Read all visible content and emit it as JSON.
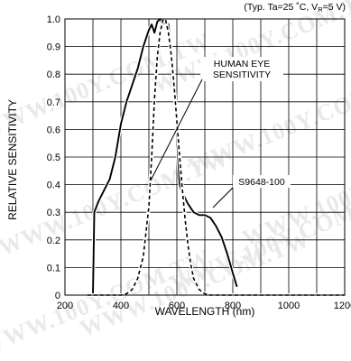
{
  "chart_data": {
    "type": "line",
    "title": "(Typ. Ta=25 ˚C, VR=5 V)",
    "title_main": "(Typ. Ta=25 ˚C, V",
    "title_sub": "R",
    "title_tail": "=5 V)",
    "xlabel": "WAVELENGTH (nm)",
    "ylabel": "RELATIVE SENSITIVITY",
    "xlim": [
      200,
      1200
    ],
    "ylim": [
      0,
      1.0
    ],
    "x_ticks": [
      200,
      400,
      600,
      800,
      1000,
      1200
    ],
    "y_ticks": [
      0,
      0.1,
      0.2,
      0.3,
      0.4,
      0.5,
      0.6,
      0.7,
      0.8,
      0.9,
      1.0
    ],
    "x_tick_labels": [
      "200",
      "400",
      "600",
      "800",
      "1000",
      "1200"
    ],
    "y_tick_labels": [
      "0",
      "0.1",
      "0.2",
      "0.3",
      "0.4",
      "0.5",
      "0.6",
      "0.7",
      "0.8",
      "0.9",
      "1.0"
    ],
    "grid": true,
    "series": [
      {
        "name": "S9648-100",
        "style": "solid",
        "color": "#000000",
        "x": [
          300,
          305,
          320,
          340,
          360,
          380,
          400,
          420,
          440,
          460,
          480,
          500,
          510,
          520,
          530,
          540,
          550,
          560,
          570,
          580,
          590,
          600,
          610,
          620,
          640,
          660,
          680,
          700,
          720,
          740,
          760,
          780,
          800,
          815
        ],
        "y": [
          0.0,
          0.3,
          0.34,
          0.38,
          0.42,
          0.5,
          0.62,
          0.7,
          0.76,
          0.82,
          0.9,
          0.96,
          0.98,
          0.95,
          0.99,
          1.0,
          0.98,
          0.99,
          0.98,
          0.88,
          0.78,
          0.58,
          0.4,
          0.37,
          0.33,
          0.3,
          0.29,
          0.29,
          0.28,
          0.25,
          0.21,
          0.15,
          0.08,
          0.03
        ]
      },
      {
        "name": "HUMAN EYE SENSITIVITY",
        "style": "dashed",
        "color": "#000000",
        "x": [
          280,
          400,
          420,
          440,
          460,
          480,
          500,
          510,
          520,
          530,
          540,
          550,
          555,
          560,
          570,
          580,
          590,
          600,
          610,
          620,
          630,
          640,
          650,
          660,
          680,
          700,
          720,
          760,
          800,
          1200
        ],
        "y": [
          0.0,
          0.0,
          0.005,
          0.02,
          0.06,
          0.14,
          0.32,
          0.5,
          0.71,
          0.86,
          0.95,
          0.995,
          1.0,
          0.995,
          0.95,
          0.87,
          0.76,
          0.63,
          0.5,
          0.38,
          0.27,
          0.18,
          0.11,
          0.06,
          0.02,
          0.005,
          0.0,
          0.0,
          0.0,
          0.0
        ]
      }
    ],
    "annotations": [
      {
        "lines": [
          "HUMAN EYE",
          "SENSITIVITY"
        ]
      },
      {
        "lines": [
          "S9648-100"
        ]
      }
    ]
  },
  "watermarks": [
    "WWW.100Y.COM.TW",
    "WWW.100Y.COM.TW",
    "WWW.100Y.COM.TW",
    "WWW.100Y.COM.TW",
    "WWW.100Y.COM.TW",
    "WWW.100Y.COM.TW",
    "WWW.100Y.COM.TW",
    "WWW.100Y.COM.TW"
  ]
}
